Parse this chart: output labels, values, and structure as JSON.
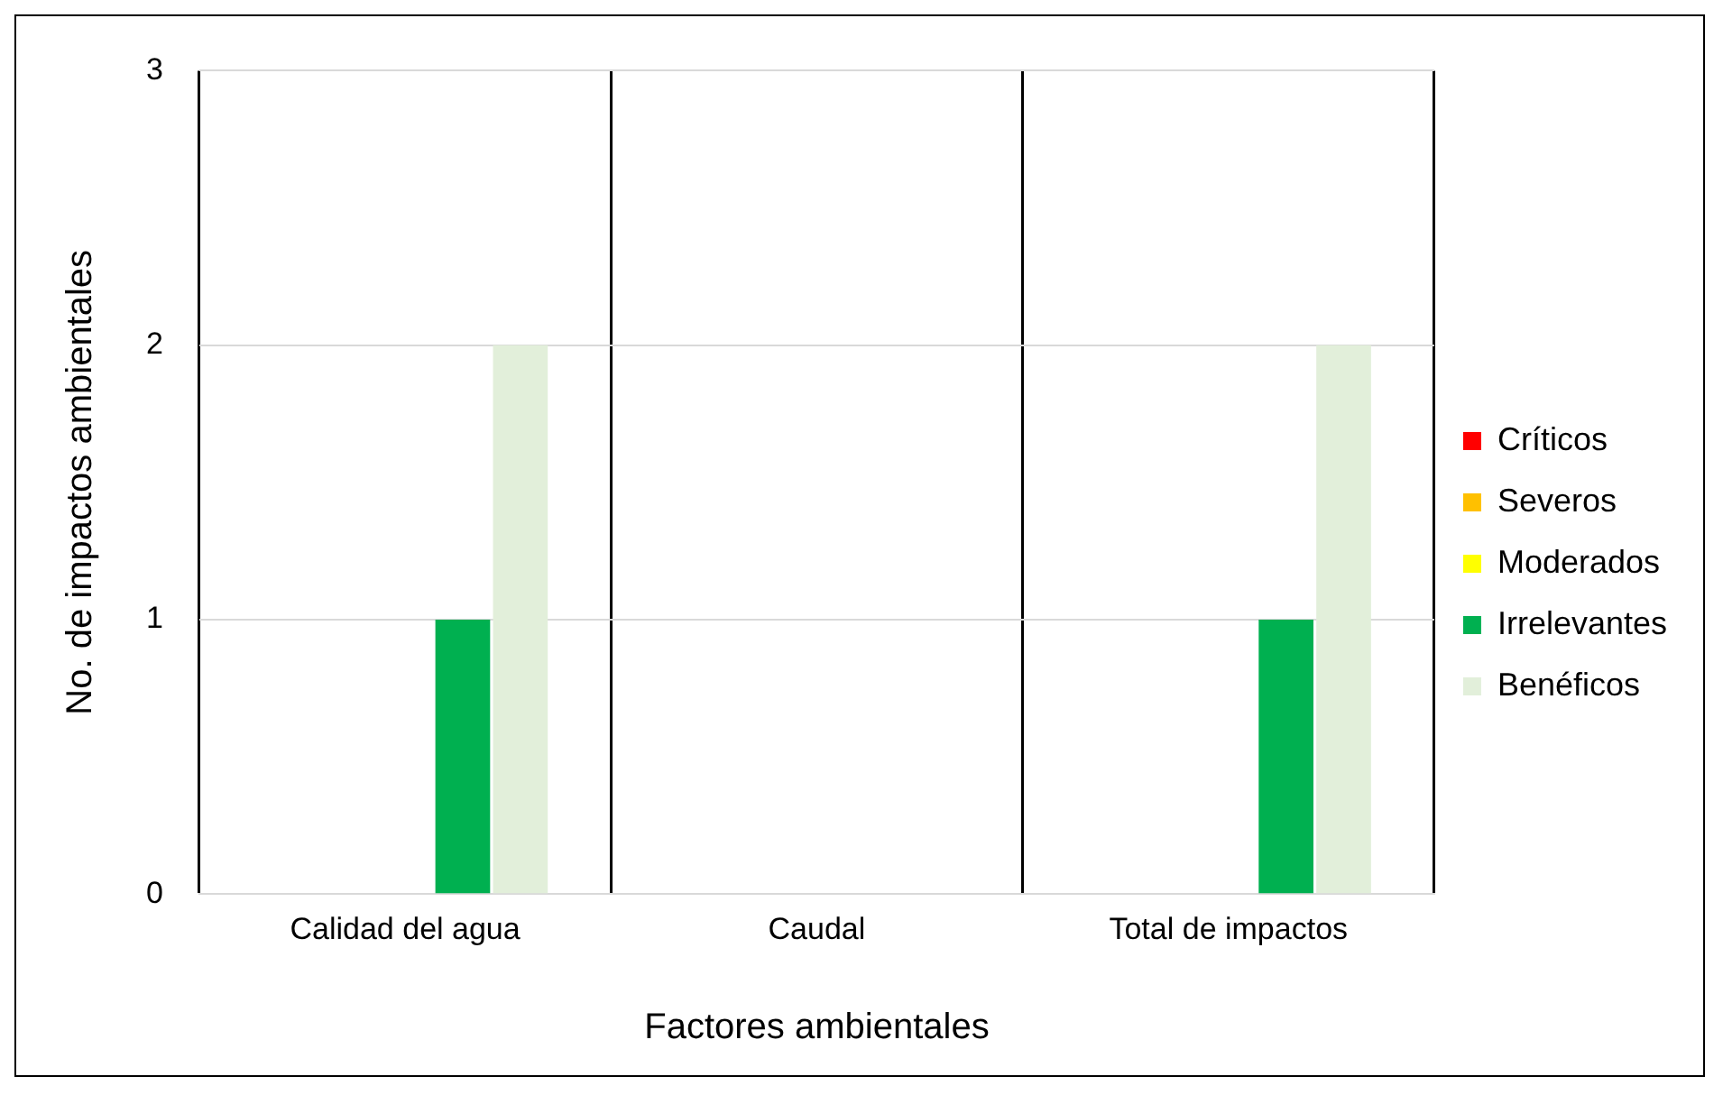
{
  "chart_data": {
    "type": "bar",
    "xlabel": "Factores ambientales",
    "ylabel": "No. de impactos ambientales",
    "categories": [
      "Calidad del agua",
      "Caudal",
      "Total de impactos"
    ],
    "series": [
      {
        "name": "Críticos",
        "color": "#ff0000",
        "values": [
          0,
          0,
          0
        ]
      },
      {
        "name": "Severos",
        "color": "#ffc000",
        "values": [
          0,
          0,
          0
        ]
      },
      {
        "name": "Moderados",
        "color": "#ffff00",
        "values": [
          0,
          0,
          0
        ]
      },
      {
        "name": "Irrelevantes",
        "color": "#00b050",
        "values": [
          1,
          0,
          1
        ]
      },
      {
        "name": "Benéficos",
        "color": "#e2efda",
        "values": [
          2,
          0,
          2
        ]
      }
    ],
    "ylim": [
      0,
      3
    ],
    "yticks": [
      0,
      1,
      2,
      3
    ],
    "grid": true,
    "legend": "right"
  }
}
